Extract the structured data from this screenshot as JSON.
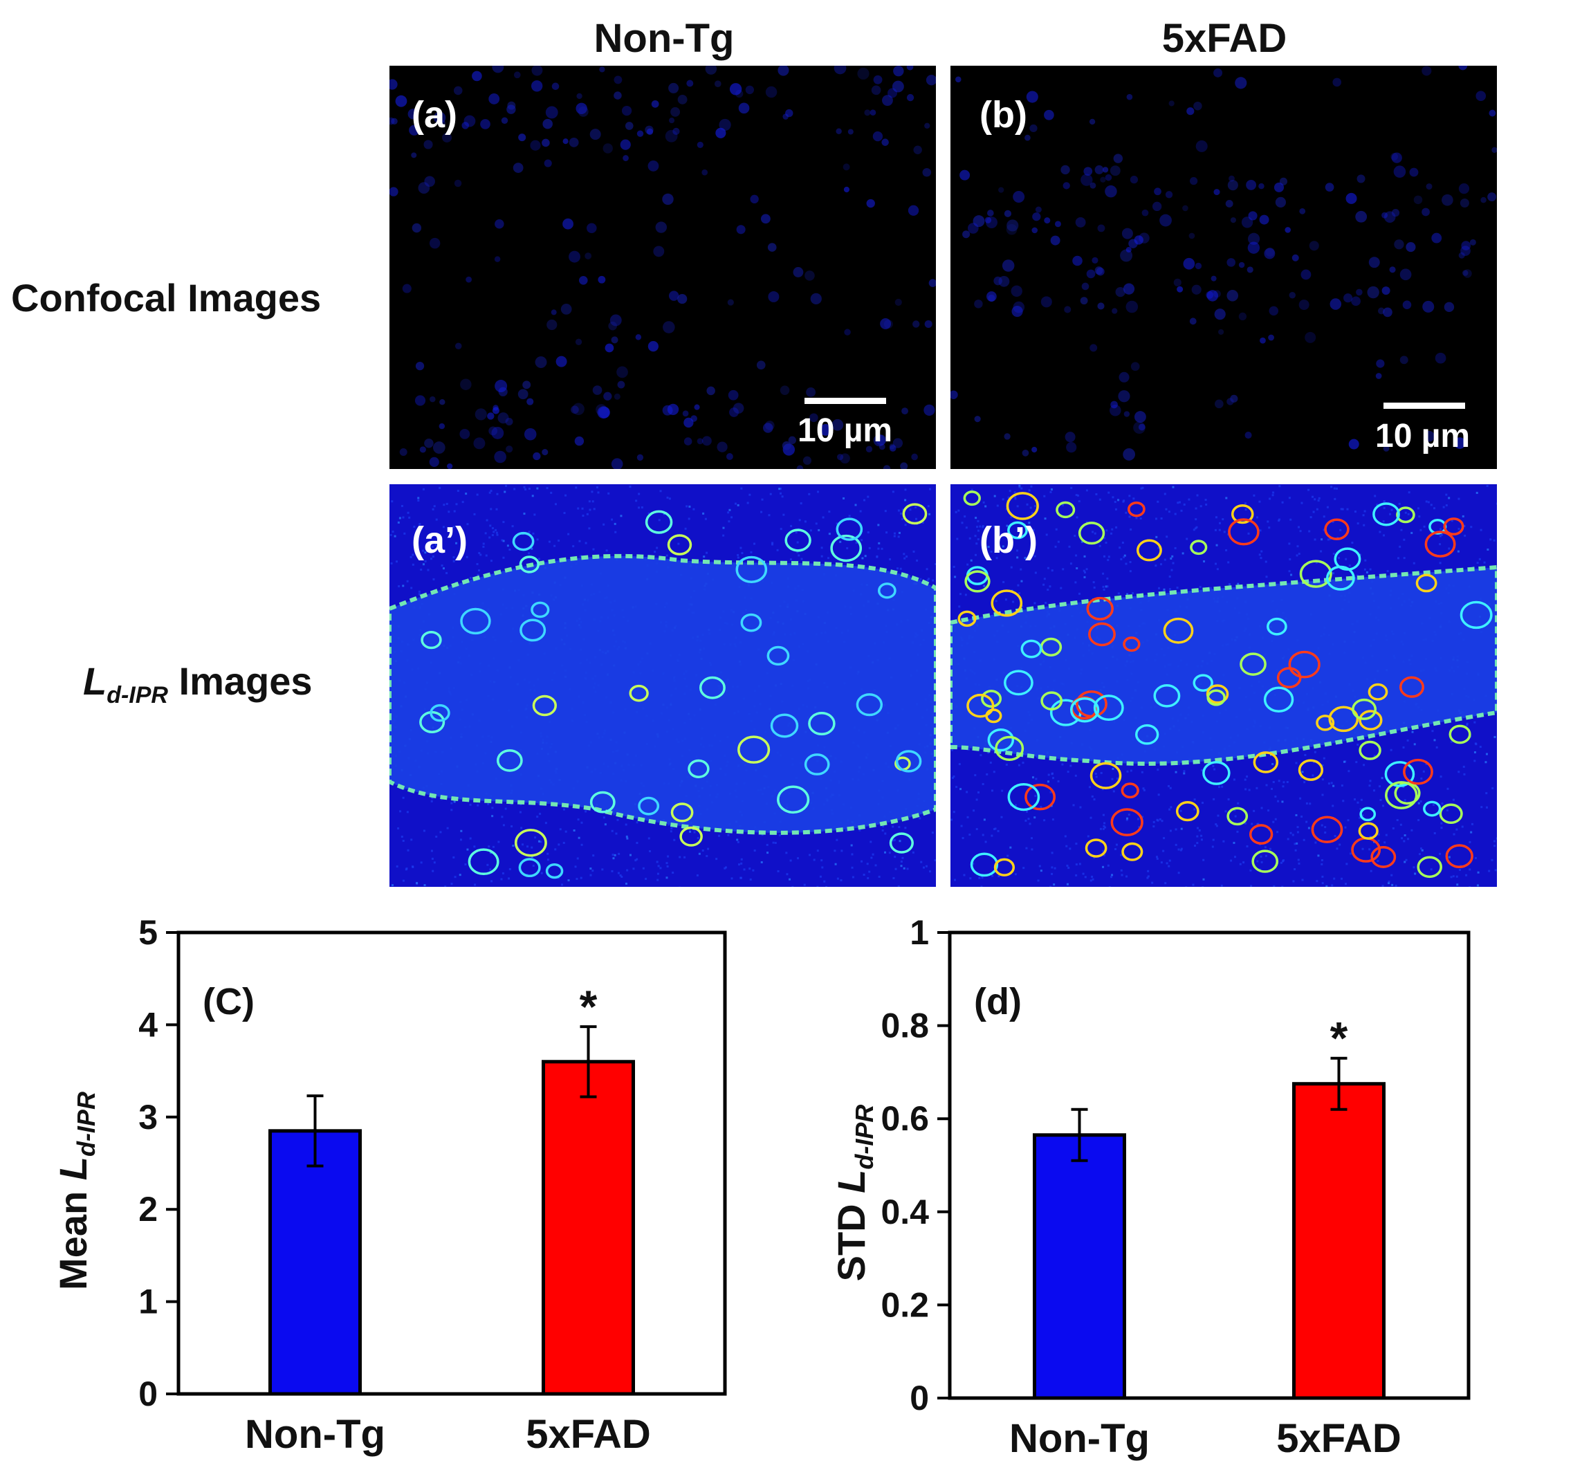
{
  "column_titles": [
    "Non-Tg",
    "5xFAD"
  ],
  "row_labels": {
    "confocal": "Confocal Images",
    "ldipr_prefix": "L",
    "ldipr_sub": "d-IPR",
    "ldipr_suffix": " Images"
  },
  "image_panels": [
    {
      "label": "(a)",
      "scale_text": "10 µm",
      "kind": "confocal"
    },
    {
      "label": "(b)",
      "scale_text": "10 µm",
      "kind": "confocal"
    },
    {
      "label": "(a’)",
      "kind": "ldipr"
    },
    {
      "label": "(b’)",
      "kind": "ldipr"
    }
  ],
  "colors": {
    "non_tg": "#0a0af0",
    "fxfad": "#ff0000",
    "confocal_bg": "#000000",
    "ldipr_bg": "#1010c8"
  },
  "chart_data": [
    {
      "type": "bar",
      "panel_label": "(C)",
      "categories": [
        "Non-Tg",
        "5xFAD"
      ],
      "values": [
        2.85,
        3.6
      ],
      "errors": [
        0.38,
        0.38
      ],
      "significance": [
        "",
        "*"
      ],
      "ylabel_prefix": "Mean ",
      "ylabel_main": "L",
      "ylabel_sub": "d-IPR",
      "ylim": [
        0,
        5
      ],
      "yticks": [
        "0",
        "1",
        "2",
        "3",
        "4",
        "5"
      ],
      "grid": false
    },
    {
      "type": "bar",
      "panel_label": "(d)",
      "categories": [
        "Non-Tg",
        "5xFAD"
      ],
      "values": [
        0.565,
        0.675
      ],
      "errors": [
        0.055,
        0.055
      ],
      "significance": [
        "",
        "*"
      ],
      "ylabel_prefix": "STD  ",
      "ylabel_main": "L",
      "ylabel_sub": "d-IPR",
      "ylim": [
        0,
        1
      ],
      "yticks": [
        "0",
        "0.2",
        "0.4",
        "0.6",
        "0.8",
        "1"
      ],
      "grid": false
    }
  ]
}
